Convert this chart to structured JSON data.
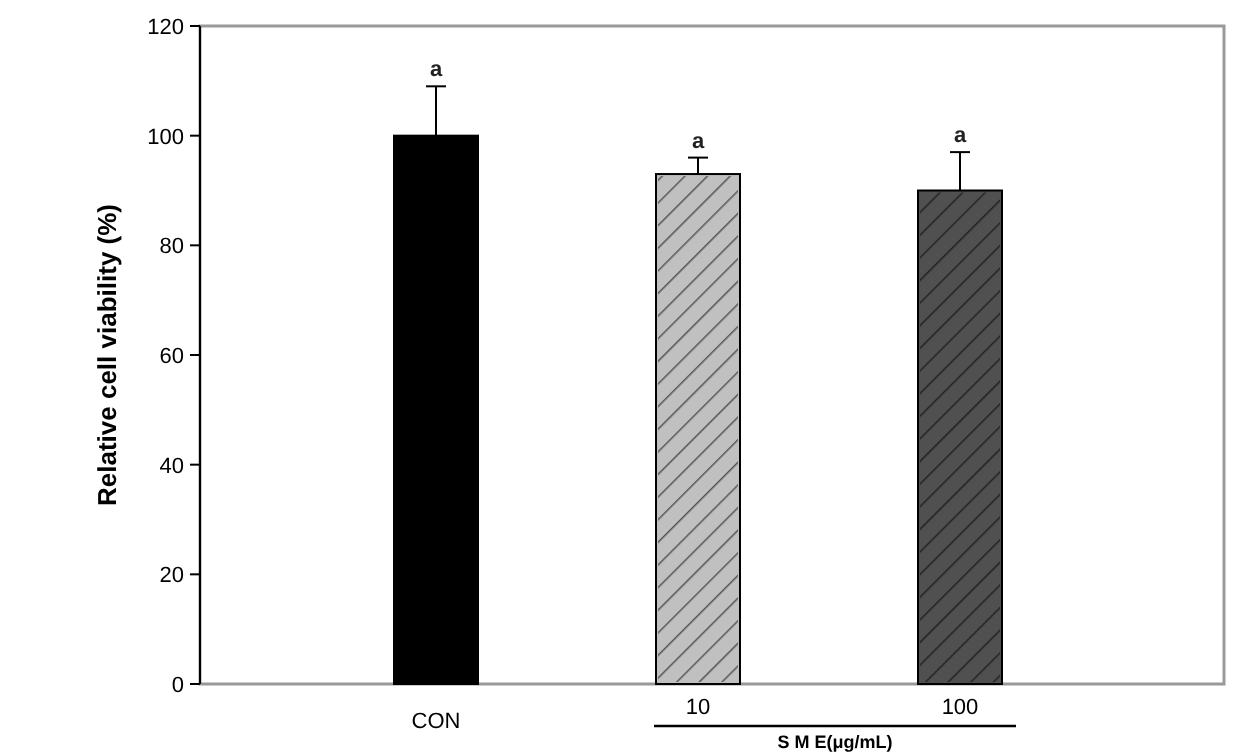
{
  "chart_data": {
    "type": "bar",
    "ylabel": "Relative cell viability (%)",
    "xlabel": "S M E(μg/mL)",
    "categories": [
      "CON",
      "10",
      "100"
    ],
    "values": [
      100,
      93,
      90
    ],
    "errors": [
      9,
      3,
      7
    ],
    "colors": [
      "#000000",
      "#c0c0c0",
      "#505050"
    ],
    "ylim": [
      0,
      120
    ],
    "yticks": [
      0,
      20,
      40,
      60,
      80,
      100,
      120
    ],
    "annotations": [
      {
        "text": "a",
        "x": "CON",
        "y": 109
      },
      {
        "text": "a",
        "x": "10",
        "y": 96
      },
      {
        "text": "a",
        "x": "100",
        "y": 97
      }
    ]
  }
}
